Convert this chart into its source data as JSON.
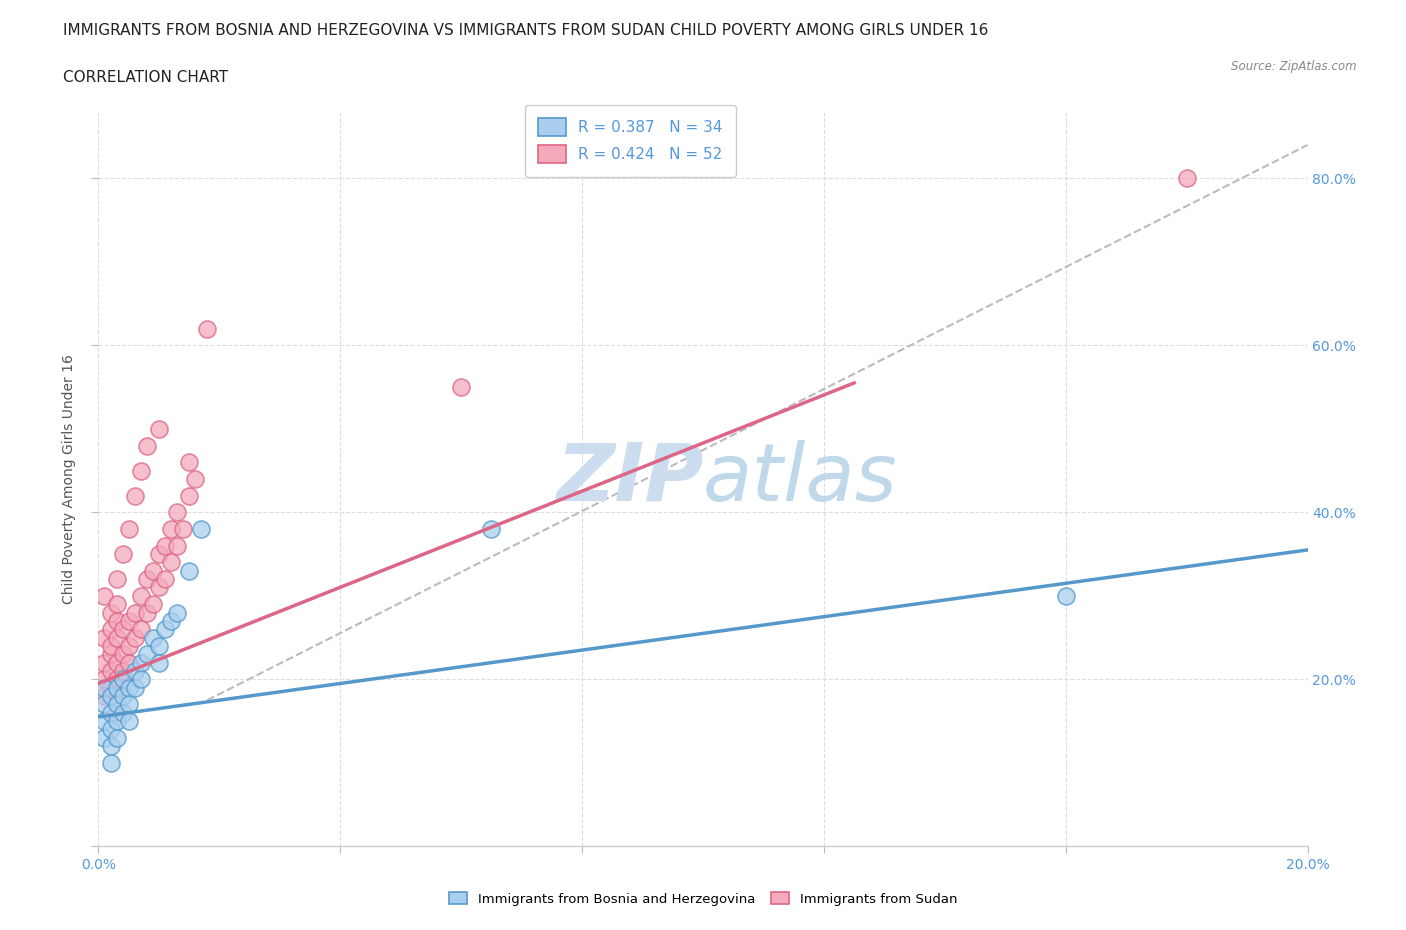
{
  "title": "IMMIGRANTS FROM BOSNIA AND HERZEGOVINA VS IMMIGRANTS FROM SUDAN CHILD POVERTY AMONG GIRLS UNDER 16",
  "subtitle": "CORRELATION CHART",
  "source": "Source: ZipAtlas.com",
  "ylabel": "Child Poverty Among Girls Under 16",
  "xlim": [
    0.0,
    0.2
  ],
  "ylim": [
    0.0,
    0.88
  ],
  "xticks": [
    0.0,
    0.04,
    0.08,
    0.12,
    0.16,
    0.2
  ],
  "yticks": [
    0.0,
    0.2,
    0.4,
    0.6,
    0.8
  ],
  "bosnia_R": 0.387,
  "bosnia_N": 34,
  "sudan_R": 0.424,
  "sudan_N": 52,
  "bosnia_fill": "#AACFEE",
  "sudan_fill": "#F4AABB",
  "bosnia_edge": "#5599CC",
  "sudan_edge": "#DD6688",
  "bosnia_line": "#5599CC",
  "sudan_line": "#DD6688",
  "ref_line_color": "#BBBBBB",
  "tick_color": "#5599DD",
  "watermark_color": "#CCDDF0",
  "background_color": "#FFFFFF",
  "bosnia_x": [
    0.001,
    0.001,
    0.001,
    0.001,
    0.002,
    0.002,
    0.002,
    0.002,
    0.002,
    0.003,
    0.003,
    0.003,
    0.003,
    0.004,
    0.004,
    0.004,
    0.005,
    0.005,
    0.005,
    0.006,
    0.006,
    0.007,
    0.007,
    0.008,
    0.009,
    0.01,
    0.01,
    0.011,
    0.012,
    0.013,
    0.015,
    0.017,
    0.16,
    0.065
  ],
  "bosnia_y": [
    0.19,
    0.17,
    0.15,
    0.13,
    0.18,
    0.16,
    0.14,
    0.12,
    0.1,
    0.19,
    0.17,
    0.15,
    0.13,
    0.2,
    0.18,
    0.16,
    0.19,
    0.17,
    0.15,
    0.21,
    0.19,
    0.22,
    0.2,
    0.23,
    0.25,
    0.24,
    0.22,
    0.26,
    0.27,
    0.28,
    0.33,
    0.38,
    0.3,
    0.38
  ],
  "sudan_x": [
    0.001,
    0.001,
    0.001,
    0.001,
    0.001,
    0.002,
    0.002,
    0.002,
    0.002,
    0.002,
    0.002,
    0.003,
    0.003,
    0.003,
    0.003,
    0.003,
    0.003,
    0.004,
    0.004,
    0.004,
    0.004,
    0.005,
    0.005,
    0.005,
    0.005,
    0.006,
    0.006,
    0.006,
    0.007,
    0.007,
    0.007,
    0.008,
    0.008,
    0.008,
    0.009,
    0.009,
    0.01,
    0.01,
    0.01,
    0.011,
    0.011,
    0.012,
    0.012,
    0.013,
    0.013,
    0.014,
    0.015,
    0.015,
    0.016,
    0.018,
    0.06,
    0.18
  ],
  "sudan_y": [
    0.2,
    0.22,
    0.18,
    0.25,
    0.3,
    0.21,
    0.23,
    0.19,
    0.26,
    0.28,
    0.24,
    0.22,
    0.25,
    0.2,
    0.27,
    0.29,
    0.32,
    0.23,
    0.26,
    0.21,
    0.35,
    0.24,
    0.27,
    0.22,
    0.38,
    0.25,
    0.28,
    0.42,
    0.26,
    0.3,
    0.45,
    0.28,
    0.32,
    0.48,
    0.29,
    0.33,
    0.31,
    0.35,
    0.5,
    0.32,
    0.36,
    0.34,
    0.38,
    0.36,
    0.4,
    0.38,
    0.42,
    0.46,
    0.44,
    0.62,
    0.55,
    0.8
  ],
  "title_fontsize": 11,
  "subtitle_fontsize": 11,
  "axis_label_fontsize": 10,
  "tick_fontsize": 10,
  "legend_fontsize": 11
}
